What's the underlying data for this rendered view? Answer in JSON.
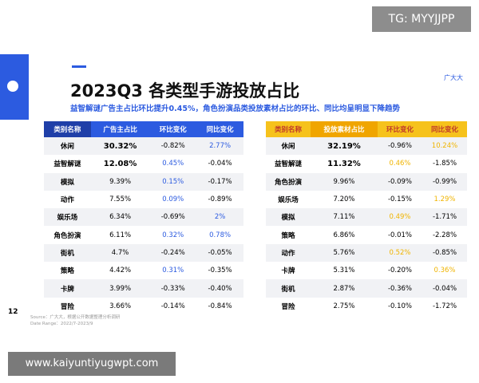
{
  "header": {
    "title": "2023Q3 各类型手游投放占比",
    "subtitle": "益智解谜广告主占比环比提升0.45%，角色扮演品类投放素材占比的环比、同比均呈明显下降趋势",
    "logo": "广大大"
  },
  "watermark_top": "TG: MYYJJPP",
  "watermark_bottom": "www.kaiyuntiyugwpt.com",
  "page_number": "12",
  "footer": {
    "source": "Source：广大大，根据公开数据整理分析调研",
    "date_range": "Date Range：2022/7-2023/9"
  },
  "tables": [
    {
      "columns": [
        "类别名称",
        "广告主占比",
        "环比变化",
        "同比变化"
      ],
      "rows": [
        [
          "休闲",
          "30.32%",
          "-0.82%",
          "2.77%"
        ],
        [
          "益智解谜",
          "12.08%",
          "0.45%",
          "-0.04%"
        ],
        [
          "模拟",
          "9.39%",
          "0.15%",
          "-0.17%"
        ],
        [
          "动作",
          "7.55%",
          "0.09%",
          "-0.89%"
        ],
        [
          "娱乐场",
          "6.34%",
          "-0.69%",
          "2%"
        ],
        [
          "角色扮演",
          "6.11%",
          "0.32%",
          "0.78%"
        ],
        [
          "街机",
          "4.7%",
          "-0.24%",
          "-0.05%"
        ],
        [
          "策略",
          "4.42%",
          "0.31%",
          "-0.35%"
        ],
        [
          "卡牌",
          "3.99%",
          "-0.33%",
          "-0.40%"
        ],
        [
          "冒险",
          "3.66%",
          "-0.14%",
          "-0.84%"
        ]
      ]
    },
    {
      "columns": [
        "类别名称",
        "投放素材占比",
        "环比变化",
        "同比变化"
      ],
      "rows": [
        [
          "休闲",
          "32.19%",
          "-0.96%",
          "10.24%"
        ],
        [
          "益智解谜",
          "11.32%",
          "0.46%",
          "-1.85%"
        ],
        [
          "角色扮演",
          "9.96%",
          "-0.09%",
          "-0.99%"
        ],
        [
          "娱乐场",
          "7.20%",
          "-0.15%",
          "1.29%"
        ],
        [
          "模拟",
          "7.11%",
          "0.49%",
          "-1.71%"
        ],
        [
          "策略",
          "6.86%",
          "-0.01%",
          "-2.28%"
        ],
        [
          "动作",
          "5.76%",
          "0.52%",
          "-0.85%"
        ],
        [
          "卡牌",
          "5.31%",
          "-0.20%",
          "0.36%"
        ],
        [
          "街机",
          "2.87%",
          "-0.36%",
          "-0.04%"
        ],
        [
          "冒险",
          "2.75%",
          "-0.10%",
          "-1.72%"
        ]
      ]
    }
  ]
}
